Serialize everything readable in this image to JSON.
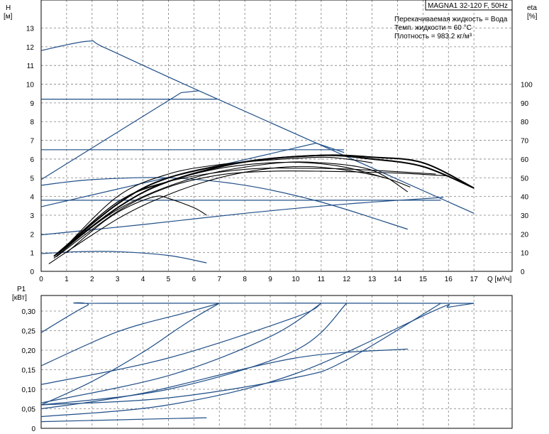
{
  "chart_data": [
    {
      "type": "line",
      "panel": "head-efficiency",
      "title_box": "MAGNA1 32-120 F, 50Hz",
      "info_lines": [
        "Перекачиваемая жидкость = Вода",
        "Темп. жидкости = 60 °C",
        "Плотность = 983.2 кг/м³"
      ],
      "ylabel_left": "H",
      "ylabel_left_unit": "[м]",
      "ylabel_right": "eta",
      "ylabel_right_unit": "[%]",
      "xlabel": "Q [м³/ч]",
      "xlim": [
        0,
        18.5
      ],
      "ylim_left": [
        0,
        14.5
      ],
      "ylim_right": [
        0,
        145
      ],
      "x_ticks": [
        "0",
        "1",
        "2",
        "3",
        "4",
        "5",
        "6",
        "7",
        "8",
        "9",
        "10",
        "11",
        "12",
        "13",
        "14",
        "15",
        "16",
        "17"
      ],
      "y_left_ticks": [
        "0",
        "1",
        "2",
        "3",
        "4",
        "5",
        "6",
        "7",
        "8",
        "9",
        "10",
        "11",
        "12",
        "13"
      ],
      "y_right_ticks": [
        "0",
        "10",
        "20",
        "30",
        "40",
        "50",
        "60",
        "70",
        "80",
        "90",
        "100"
      ],
      "grid": true,
      "series": [
        {
          "group": "head",
          "values": [
            [
              0,
              11.8
            ],
            [
              1.85,
              12.3
            ],
            [
              2.5,
              11.95
            ],
            [
              6.2,
              9.65
            ],
            [
              17,
              3.1
            ]
          ]
        },
        {
          "group": "head",
          "values": [
            [
              0,
              4.9
            ],
            [
              5.5,
              9.55
            ],
            [
              6.2,
              9.65
            ]
          ]
        },
        {
          "group": "head",
          "values": [
            [
              0,
              9.2
            ],
            [
              6.9,
              9.2
            ]
          ]
        },
        {
          "group": "head",
          "values": [
            [
              0,
              6.5
            ],
            [
              11.9,
              6.5
            ]
          ]
        },
        {
          "group": "head",
          "values": [
            [
              0,
              3.8
            ],
            [
              15.7,
              3.8
            ]
          ]
        },
        {
          "group": "head",
          "values": [
            [
              0,
              3.45
            ],
            [
              10.8,
              6.85
            ],
            [
              11.9,
              6.35
            ]
          ]
        },
        {
          "group": "head",
          "values": [
            [
              0,
              4.6
            ],
            [
              2,
              4.9
            ],
            [
              5,
              5.0
            ],
            [
              8,
              4.6
            ],
            [
              11,
              3.7
            ],
            [
              14.4,
              2.25
            ]
          ]
        },
        {
          "group": "head",
          "values": [
            [
              0,
              1.95
            ],
            [
              4,
              2.5
            ],
            [
              8,
              3.1
            ],
            [
              12,
              3.6
            ],
            [
              15.8,
              3.95
            ]
          ]
        },
        {
          "group": "head",
          "values": [
            [
              0,
              0.95
            ],
            [
              1.5,
              1.05
            ],
            [
              3,
              1.05
            ],
            [
              5,
              0.85
            ],
            [
              6.5,
              0.45
            ]
          ]
        },
        {
          "group": "efficiency",
          "values": [
            [
              0.6,
              7.8
            ],
            [
              3,
              32
            ],
            [
              5,
              45
            ],
            [
              7,
              51.5
            ],
            [
              9,
              53.5
            ],
            [
              11,
              53.5
            ],
            [
              14,
              52.5
            ],
            [
              16,
              51
            ]
          ]
        },
        {
          "group": "efficiency",
          "values": [
            [
              0.6,
              9
            ],
            [
              3,
              37
            ],
            [
              5,
              48
            ],
            [
              8,
              54.5
            ],
            [
              11,
              55
            ],
            [
              13,
              54
            ],
            [
              15.5,
              52
            ]
          ]
        },
        {
          "group": "efficiency",
          "values": [
            [
              0.5,
              7
            ],
            [
              3,
              33
            ],
            [
              6,
              50
            ],
            [
              9,
              57.5
            ],
            [
              11,
              58
            ],
            [
              13,
              54
            ],
            [
              14.4,
              42.5
            ]
          ]
        },
        {
          "group": "efficiency",
          "values": [
            [
              0.3,
              4
            ],
            [
              3,
              28
            ],
            [
              5,
              41
            ],
            [
              7,
              50
            ],
            [
              9,
              55
            ],
            [
              10.5,
              56
            ],
            [
              12,
              54
            ],
            [
              13.5,
              50
            ],
            [
              14.5,
              45
            ]
          ]
        },
        {
          "group": "efficiency",
          "values": [
            [
              0.7,
              10
            ],
            [
              3,
              37
            ],
            [
              5,
              48
            ],
            [
              7,
              55
            ],
            [
              9,
              58
            ],
            [
              10.5,
              58
            ],
            [
              12,
              55.5
            ],
            [
              13.5,
              50
            ]
          ]
        },
        {
          "group": "efficiency",
          "values": [
            [
              0.8,
              11
            ],
            [
              3,
              40
            ],
            [
              5,
              52
            ],
            [
              7,
              57
            ],
            [
              9,
              59.5
            ],
            [
              11,
              61
            ],
            [
              12,
              60
            ],
            [
              13,
              58
            ]
          ]
        },
        {
          "group": "efficiency",
          "values": [
            [
              1,
              10
            ],
            [
              2.5,
              27
            ],
            [
              3.5,
              35
            ],
            [
              4.5,
              40
            ],
            [
              5,
              39
            ],
            [
              6,
              34
            ],
            [
              6.5,
              30
            ]
          ]
        },
        {
          "group": "efficiency",
          "style": "thick",
          "values": [
            [
              0.6,
              9
            ],
            [
              3,
              34
            ],
            [
              5,
              48
            ],
            [
              8,
              58.5
            ],
            [
              11,
              62
            ],
            [
              13,
              61
            ],
            [
              15,
              58
            ],
            [
              17,
              44.5
            ]
          ]
        },
        {
          "group": "efficiency",
          "style": "thick",
          "values": [
            [
              0.5,
              8
            ],
            [
              3,
              36
            ],
            [
              5,
              50
            ],
            [
              8,
              58.5
            ],
            [
              11,
              62
            ],
            [
              13,
              60
            ],
            [
              15,
              56
            ],
            [
              17,
              44.5
            ]
          ]
        }
      ]
    },
    {
      "type": "line",
      "panel": "power",
      "ylabel": "P1",
      "ylabel_unit": "[кВт]",
      "xlim": [
        0,
        18.5
      ],
      "ylim": [
        0,
        0.34
      ],
      "x_ticks": [
        "0",
        "1",
        "2",
        "3",
        "4",
        "5",
        "6",
        "7",
        "8",
        "9",
        "10",
        "11",
        "12",
        "13",
        "14",
        "15",
        "16",
        "17"
      ],
      "y_ticks": [
        "0",
        "0,05",
        "0,10",
        "0,15",
        "0,20",
        "0,25",
        "0,30"
      ],
      "grid": true,
      "series": [
        {
          "values": [
            [
              0,
              0.245
            ],
            [
              1.8,
              0.314
            ],
            [
              2.5,
              0.32
            ],
            [
              17,
              0.32
            ]
          ]
        },
        {
          "values": [
            [
              0,
              0.16
            ],
            [
              3,
              0.247
            ],
            [
              5.5,
              0.293
            ],
            [
              7,
              0.32
            ]
          ]
        },
        {
          "values": [
            [
              0,
              0.06
            ],
            [
              2,
              0.12
            ],
            [
              4,
              0.195
            ],
            [
              5.3,
              0.252
            ],
            [
              6.2,
              0.29
            ],
            [
              7,
              0.32
            ]
          ]
        },
        {
          "values": [
            [
              0,
              0.112
            ],
            [
              5,
              0.18
            ],
            [
              10,
              0.285
            ],
            [
              11,
              0.32
            ]
          ]
        },
        {
          "values": [
            [
              0,
              0.065
            ],
            [
              5,
              0.135
            ],
            [
              9,
              0.235
            ],
            [
              11,
              0.32
            ]
          ]
        },
        {
          "values": [
            [
              0,
              0.06
            ],
            [
              5,
              0.1
            ],
            [
              10,
              0.2
            ],
            [
              12,
              0.32
            ]
          ]
        },
        {
          "values": [
            [
              0,
              0.05
            ],
            [
              4,
              0.09
            ],
            [
              10,
              0.18
            ],
            [
              14.4,
              0.203
            ]
          ]
        },
        {
          "values": [
            [
              0,
              0.03
            ],
            [
              5,
              0.06
            ],
            [
              10,
              0.14
            ],
            [
              15.5,
              0.303
            ],
            [
              16,
              0.31
            ],
            [
              17,
              0.32
            ]
          ]
        },
        {
          "values": [
            [
              0,
              0.017
            ],
            [
              6.5,
              0.027
            ]
          ]
        },
        {
          "values": [
            [
              0,
              0.06
            ],
            [
              5,
              0.078
            ],
            [
              10,
              0.13
            ],
            [
              12,
              0.175
            ],
            [
              15.7,
              0.32
            ]
          ]
        }
      ]
    }
  ]
}
